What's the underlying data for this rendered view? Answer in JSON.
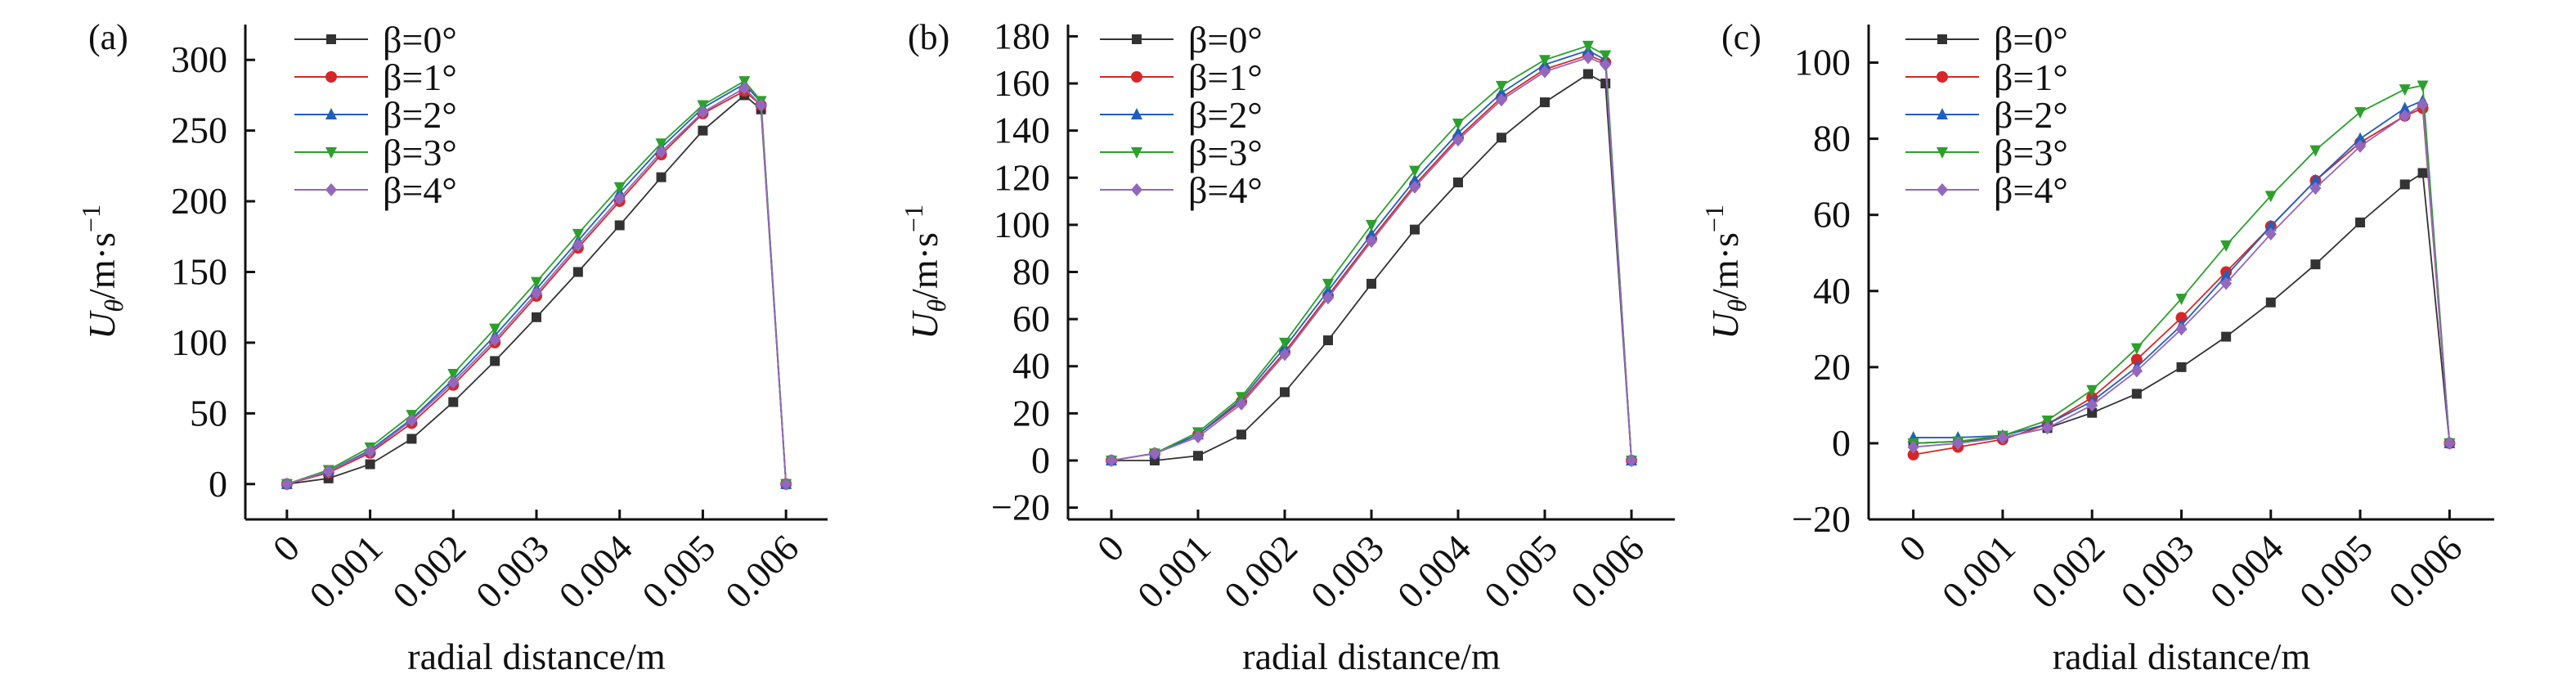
{
  "chart_data": [
    {
      "panel": "(a)",
      "type": "line",
      "xlabel": "radial distance/m",
      "ylabel": {
        "symbol": "U",
        "sub": "θ",
        "unit": "/m·s",
        "exp": "−1"
      },
      "xlim": [
        -0.0005,
        0.0065
      ],
      "ylim": [
        -25,
        325
      ],
      "xticks": [
        0,
        0.001,
        0.002,
        0.003,
        0.004,
        0.005,
        0.006
      ],
      "xtick_labels": [
        "0",
        "0.001",
        "0.002",
        "0.003",
        "0.004",
        "0.005",
        "0.006"
      ],
      "yticks": [
        0,
        50,
        100,
        150,
        200,
        250,
        300
      ],
      "ytick_labels": [
        "0",
        "50",
        "100",
        "150",
        "200",
        "250",
        "300"
      ],
      "legend_position": "top-left",
      "series": [
        {
          "name": "β=0°",
          "color": "#333333",
          "marker": "square",
          "x": [
            0,
            0.0005,
            0.001,
            0.0015,
            0.002,
            0.0025,
            0.003,
            0.0035,
            0.004,
            0.0045,
            0.005,
            0.0055,
            0.0057,
            0.006
          ],
          "y": [
            0,
            4,
            14,
            32,
            58,
            87,
            118,
            150,
            183,
            217,
            250,
            275,
            265,
            0
          ]
        },
        {
          "name": "β=1°",
          "color": "#d62728",
          "marker": "circle",
          "x": [
            0,
            0.0005,
            0.001,
            0.0015,
            0.002,
            0.0025,
            0.003,
            0.0035,
            0.004,
            0.0045,
            0.005,
            0.0055,
            0.0057,
            0.006
          ],
          "y": [
            0,
            8,
            22,
            43,
            70,
            100,
            133,
            167,
            200,
            233,
            262,
            278,
            268,
            0
          ]
        },
        {
          "name": "β=2°",
          "color": "#1f5fbf",
          "marker": "triangle-up",
          "x": [
            0,
            0.0005,
            0.001,
            0.0015,
            0.002,
            0.0025,
            0.003,
            0.0035,
            0.004,
            0.0045,
            0.005,
            0.0055,
            0.0057,
            0.006
          ],
          "y": [
            0,
            9,
            24,
            46,
            74,
            105,
            138,
            172,
            206,
            238,
            266,
            283,
            270,
            0
          ]
        },
        {
          "name": "β=3°",
          "color": "#2ca02c",
          "marker": "triangle-down",
          "x": [
            0,
            0.0005,
            0.001,
            0.0015,
            0.002,
            0.0025,
            0.003,
            0.0035,
            0.004,
            0.0045,
            0.005,
            0.0055,
            0.0057,
            0.006
          ],
          "y": [
            0,
            10,
            26,
            49,
            78,
            110,
            143,
            177,
            210,
            241,
            268,
            285,
            271,
            0
          ]
        },
        {
          "name": "β=4°",
          "color": "#9467bd",
          "marker": "diamond",
          "x": [
            0,
            0.0005,
            0.001,
            0.0015,
            0.002,
            0.0025,
            0.003,
            0.0035,
            0.004,
            0.0045,
            0.005,
            0.0055,
            0.0057,
            0.006
          ],
          "y": [
            0,
            9,
            23,
            45,
            72,
            102,
            135,
            169,
            202,
            235,
            263,
            280,
            268,
            0
          ]
        }
      ]
    },
    {
      "panel": "(b)",
      "type": "line",
      "xlabel": "radial distance/m",
      "ylabel": {
        "symbol": "U",
        "sub": "θ",
        "unit": "/m·s",
        "exp": "−1"
      },
      "xlim": [
        -0.0005,
        0.0065
      ],
      "ylim": [
        -25,
        185
      ],
      "xticks": [
        0,
        0.001,
        0.002,
        0.003,
        0.004,
        0.005,
        0.006
      ],
      "xtick_labels": [
        "0",
        "0.001",
        "0.002",
        "0.003",
        "0.004",
        "0.005",
        "0.006"
      ],
      "yticks": [
        -20,
        0,
        20,
        40,
        60,
        80,
        100,
        120,
        140,
        160,
        180
      ],
      "ytick_labels": [
        "−20",
        "0",
        "20",
        "40",
        "60",
        "80",
        "100",
        "120",
        "140",
        "160",
        "180"
      ],
      "legend_position": "top-left",
      "series": [
        {
          "name": "β=0°",
          "color": "#333333",
          "marker": "square",
          "x": [
            0,
            0.0005,
            0.001,
            0.0015,
            0.002,
            0.0025,
            0.003,
            0.0035,
            0.004,
            0.0045,
            0.005,
            0.0055,
            0.0057,
            0.006
          ],
          "y": [
            0,
            0,
            2,
            11,
            29,
            51,
            75,
            98,
            118,
            137,
            152,
            164,
            160,
            0
          ]
        },
        {
          "name": "β=1°",
          "color": "#d62728",
          "marker": "circle",
          "x": [
            0,
            0.0005,
            0.001,
            0.0015,
            0.002,
            0.0025,
            0.003,
            0.0035,
            0.004,
            0.0045,
            0.005,
            0.0055,
            0.0057,
            0.006
          ],
          "y": [
            0,
            3,
            11,
            25,
            46,
            70,
            94,
            117,
            137,
            154,
            166,
            172,
            169,
            0
          ]
        },
        {
          "name": "β=2°",
          "color": "#1f5fbf",
          "marker": "triangle-up",
          "x": [
            0,
            0.0005,
            0.001,
            0.0015,
            0.002,
            0.0025,
            0.003,
            0.0035,
            0.004,
            0.0045,
            0.005,
            0.0055,
            0.0057,
            0.006
          ],
          "y": [
            0,
            3,
            11,
            26,
            48,
            72,
            96,
            119,
            139,
            156,
            168,
            174,
            170,
            0
          ]
        },
        {
          "name": "β=3°",
          "color": "#2ca02c",
          "marker": "triangle-down",
          "x": [
            0,
            0.0005,
            0.001,
            0.0015,
            0.002,
            0.0025,
            0.003,
            0.0035,
            0.004,
            0.0045,
            0.005,
            0.0055,
            0.0057,
            0.006
          ],
          "y": [
            0,
            3,
            12,
            27,
            50,
            75,
            100,
            123,
            143,
            159,
            170,
            176,
            172,
            0
          ]
        },
        {
          "name": "β=4°",
          "color": "#9467bd",
          "marker": "diamond",
          "x": [
            0,
            0.0005,
            0.001,
            0.0015,
            0.002,
            0.0025,
            0.003,
            0.0035,
            0.004,
            0.0045,
            0.005,
            0.0055,
            0.0057,
            0.006
          ],
          "y": [
            0,
            3,
            10,
            24,
            45,
            69,
            93,
            116,
            136,
            153,
            165,
            171,
            168,
            0
          ]
        }
      ]
    },
    {
      "panel": "(c)",
      "type": "line",
      "xlabel": "radial distance/m",
      "ylabel": {
        "symbol": "U",
        "sub": "θ",
        "unit": "/m·s",
        "exp": "−1"
      },
      "xlim": [
        -0.0005,
        0.0065
      ],
      "ylim": [
        -20,
        110
      ],
      "xticks": [
        0,
        0.001,
        0.002,
        0.003,
        0.004,
        0.005,
        0.006
      ],
      "xtick_labels": [
        "0",
        "0.001",
        "0.002",
        "0.003",
        "0.004",
        "0.005",
        "0.006"
      ],
      "yticks": [
        -20,
        0,
        20,
        40,
        60,
        80,
        100
      ],
      "ytick_labels": [
        "−20",
        "0",
        "20",
        "40",
        "60",
        "80",
        "100"
      ],
      "legend_position": "top-left",
      "series": [
        {
          "name": "β=0°",
          "color": "#333333",
          "marker": "square",
          "x": [
            0,
            0.0005,
            0.001,
            0.0015,
            0.002,
            0.0025,
            0.003,
            0.0035,
            0.004,
            0.0045,
            0.005,
            0.0055,
            0.0057,
            0.006
          ],
          "y": [
            0,
            0.5,
            1.5,
            4,
            8,
            13,
            20,
            28,
            37,
            47,
            58,
            68,
            71,
            0
          ]
        },
        {
          "name": "β=1°",
          "color": "#d62728",
          "marker": "circle",
          "x": [
            0,
            0.0005,
            0.001,
            0.0015,
            0.002,
            0.0025,
            0.003,
            0.0035,
            0.004,
            0.0045,
            0.005,
            0.0055,
            0.0057,
            0.006
          ],
          "y": [
            -3,
            -1,
            1,
            5,
            12,
            22,
            33,
            45,
            57,
            69,
            79,
            86,
            88,
            0
          ]
        },
        {
          "name": "β=2°",
          "color": "#1f5fbf",
          "marker": "triangle-up",
          "x": [
            0,
            0.0005,
            0.001,
            0.0015,
            0.002,
            0.0025,
            0.003,
            0.0035,
            0.004,
            0.0045,
            0.005,
            0.0055,
            0.0057,
            0.006
          ],
          "y": [
            1.5,
            1.5,
            2,
            5,
            11,
            20,
            31,
            44,
            57,
            69,
            80,
            88,
            90,
            0
          ]
        },
        {
          "name": "β=3°",
          "color": "#2ca02c",
          "marker": "triangle-down",
          "x": [
            0,
            0.0005,
            0.001,
            0.0015,
            0.002,
            0.0025,
            0.003,
            0.0035,
            0.004,
            0.0045,
            0.005,
            0.0055,
            0.0057,
            0.006
          ],
          "y": [
            0,
            0.5,
            2,
            6,
            14,
            25,
            38,
            52,
            65,
            77,
            87,
            93,
            94,
            0
          ]
        },
        {
          "name": "β=4°",
          "color": "#9467bd",
          "marker": "diamond",
          "x": [
            0,
            0.0005,
            0.001,
            0.0015,
            0.002,
            0.0025,
            0.003,
            0.0035,
            0.004,
            0.0045,
            0.005,
            0.0055,
            0.0057,
            0.006
          ],
          "y": [
            -1,
            0,
            1.5,
            4,
            10,
            19,
            30,
            42,
            55,
            67,
            78,
            86,
            89,
            0
          ]
        }
      ]
    }
  ]
}
